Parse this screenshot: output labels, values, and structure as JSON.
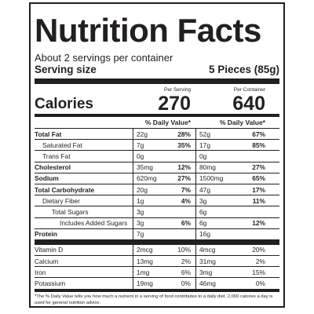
{
  "title": "Nutrition Facts",
  "servings_per_container": "About 2 servings per container",
  "serving_size_label": "Serving size",
  "serving_size_value": "5 Pieces (85g)",
  "per_serving_label": "Per Serving",
  "per_container_label": "Per Container",
  "calories_label": "Calories",
  "calories_per_serving": "270",
  "calories_per_container": "640",
  "daily_value_header": "% Daily Value*",
  "nutrients": [
    {
      "name": "Total Fat",
      "s_amt": "22g",
      "s_dv": "28%",
      "c_amt": "52g",
      "c_dv": "67%"
    },
    {
      "name": "Saturated Fat",
      "s_amt": "7g",
      "s_dv": "35%",
      "c_amt": "17g",
      "c_dv": "85%"
    },
    {
      "name": "Trans Fat",
      "s_amt": "0g",
      "s_dv": "",
      "c_amt": "0g",
      "c_dv": ""
    },
    {
      "name": "Cholesterol",
      "s_amt": "35mg",
      "s_dv": "12%",
      "c_amt": "80mg",
      "c_dv": "27%"
    },
    {
      "name": "Sodium",
      "s_amt": "620mg",
      "s_dv": "27%",
      "c_amt": "1500mg",
      "c_dv": "65%"
    },
    {
      "name": "Total Carbohydrate",
      "s_amt": "20g",
      "s_dv": "7%",
      "c_amt": "47g",
      "c_dv": "17%"
    },
    {
      "name": "Dietary Fiber",
      "s_amt": "1g",
      "s_dv": "4%",
      "c_amt": "3g",
      "c_dv": "11%"
    },
    {
      "name": "Total Sugars",
      "s_amt": "3g",
      "s_dv": "",
      "c_amt": "6g",
      "c_dv": ""
    },
    {
      "name": "Includes Added Sugars",
      "s_amt": "3g",
      "s_dv": "6%",
      "c_amt": "6g",
      "c_dv": "12%"
    },
    {
      "name": "Protein",
      "s_amt": "7g",
      "s_dv": "",
      "c_amt": "16g",
      "c_dv": ""
    }
  ],
  "micronutrients": [
    {
      "name": "Vitamin D",
      "s_amt": "2mcg",
      "s_dv": "10%",
      "c_amt": "4mcg",
      "c_dv": "20%"
    },
    {
      "name": "Calcium",
      "s_amt": "13mg",
      "s_dv": "2%",
      "c_amt": "31mg",
      "c_dv": "2%"
    },
    {
      "name": "Iron",
      "s_amt": "1mg",
      "s_dv": "6%",
      "c_amt": "3mg",
      "c_dv": "15%"
    },
    {
      "name": "Potassium",
      "s_amt": "19mg",
      "s_dv": "0%",
      "c_amt": "46mg",
      "c_dv": "0%"
    }
  ],
  "footnote": "*The % Daily Value tells you how much a nutrient in a serving of food contributes to a daily diet. 2,000 calories a day is used for general nutrition advice."
}
